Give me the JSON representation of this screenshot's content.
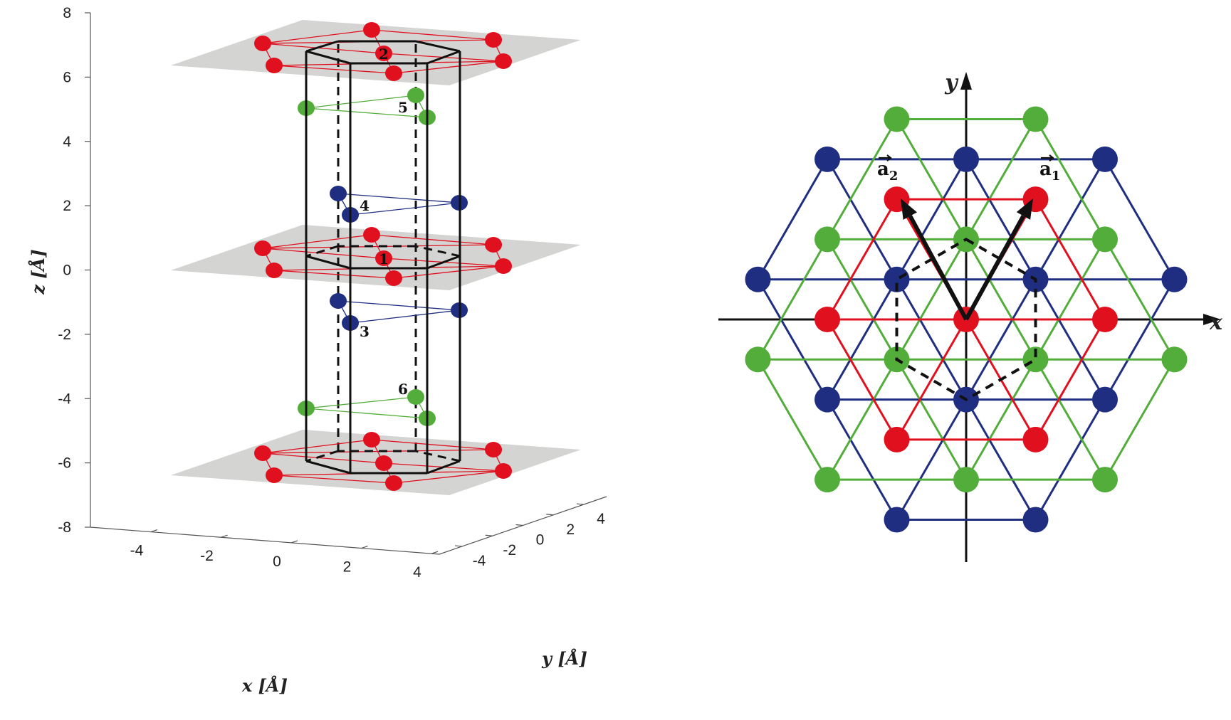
{
  "left_panel": {
    "z_axis": {
      "label": "z [Å]",
      "ticks": [
        "8",
        "6",
        "4",
        "2",
        "0",
        "-2",
        "-4",
        "-6",
        "-8"
      ]
    },
    "x_axis": {
      "label": "x [Å]",
      "ticks": [
        "-4",
        "-2",
        "0",
        "2",
        "4"
      ]
    },
    "y_axis": {
      "label": "y [Å]",
      "ticks": [
        "-4",
        "-2",
        "0",
        "2",
        "4"
      ]
    },
    "layer_labels": {
      "l1": "1",
      "l2": "2",
      "l3": "3",
      "l4": "4",
      "l5": "5",
      "l6": "6"
    }
  },
  "right_panel": {
    "x_label": "x",
    "y_label": "y",
    "a1": {
      "symbol": "a",
      "subscript": "1"
    },
    "a2": {
      "symbol": "a",
      "subscript": "2"
    }
  },
  "colors": {
    "red": "#e1101f",
    "blue": "#1f2e80",
    "green": "#52ad3a",
    "plane": "#d4d4d2",
    "black": "#111111"
  }
}
